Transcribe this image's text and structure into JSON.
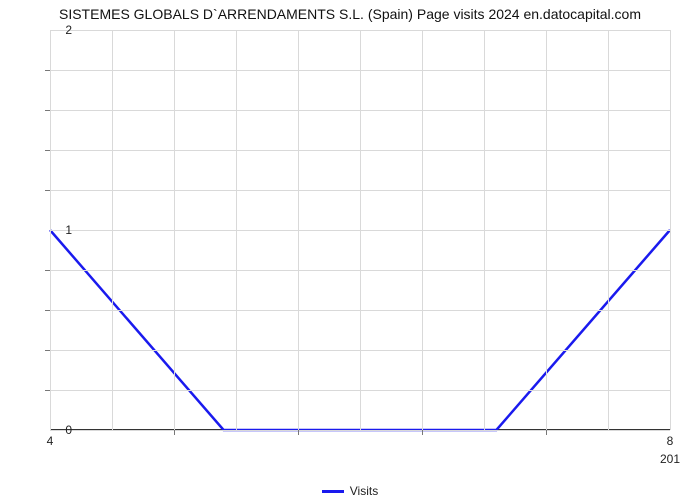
{
  "chart": {
    "type": "line",
    "title": "SISTEMES GLOBALS D`ARRENDAMENTS S.L. (Spain) Page visits 2024 en.datocapital.com",
    "title_fontsize": 14,
    "title_color": "#111111",
    "background_color": "#ffffff",
    "grid_color": "#d9d9d9",
    "axis_color": "#333333",
    "label_fontsize": 12,
    "xlim": [
      4,
      8
    ],
    "ylim": [
      0,
      2
    ],
    "x_major_ticks": [
      4,
      8
    ],
    "x_minor_tick_count": 4,
    "x_sub_label": "201",
    "y_major_ticks": [
      0,
      1,
      2
    ],
    "y_minor_tick_count": 4,
    "series": {
      "name": "Visits",
      "color": "#1a1aee",
      "line_width": 2.5,
      "x": [
        4.0,
        5.12,
        6.88,
        8.0
      ],
      "y": [
        1.0,
        0.0,
        0.0,
        1.0
      ]
    },
    "legend": {
      "label": "Visits",
      "swatch_color": "#1a1aee",
      "position": "bottom-center"
    }
  }
}
